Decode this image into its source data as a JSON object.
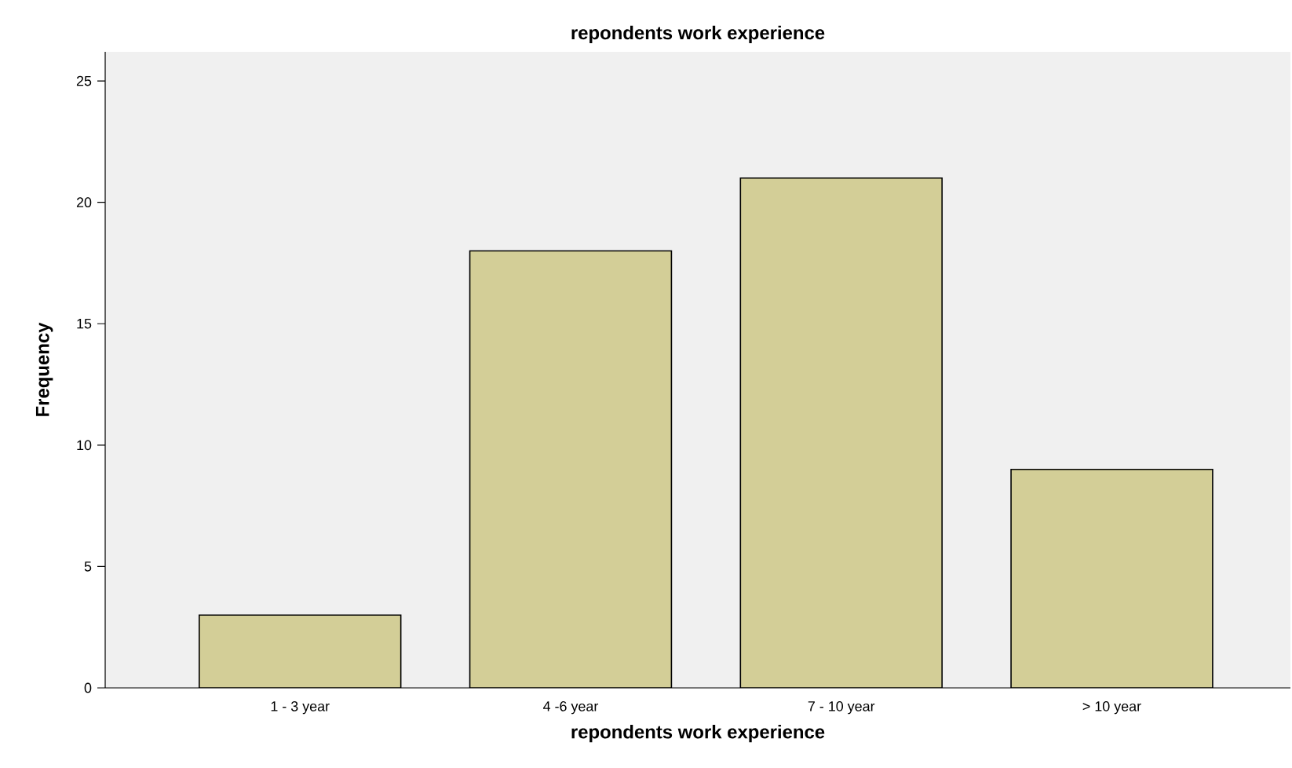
{
  "chart_data": {
    "type": "bar",
    "title": "repondents work experience",
    "xlabel": "repondents work experience",
    "ylabel": "Frequency",
    "categories": [
      "1 - 3 year",
      "4 -6 year",
      "7 - 10 year",
      "> 10 year"
    ],
    "values": [
      3,
      18,
      21,
      9
    ],
    "color": "#d3ce97",
    "ylim": [
      0,
      26.2
    ],
    "yticks": [
      0,
      5,
      10,
      15,
      20,
      25
    ],
    "grid": false
  }
}
